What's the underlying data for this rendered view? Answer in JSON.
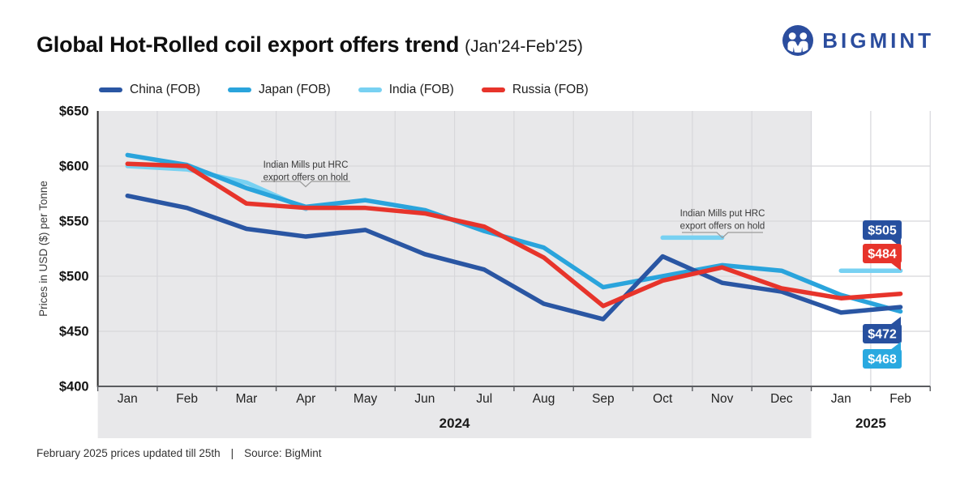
{
  "header": {
    "title": "Global Hot-Rolled coil export offers trend",
    "subtitle": "(Jan'24-Feb'25)",
    "brand": "BIGMINT"
  },
  "legend": {
    "items": [
      {
        "label": "China (FOB)",
        "color": "#2a56a3"
      },
      {
        "label": "Japan (FOB)",
        "color": "#2aa4dc"
      },
      {
        "label": "India (FOB)",
        "color": "#78d1f2"
      },
      {
        "label": "Russia (FOB)",
        "color": "#e7342b"
      }
    ]
  },
  "footer": {
    "note": "February 2025 prices updated till 25th",
    "separator": "|",
    "source": "Source: BigMint"
  },
  "colors": {
    "brand": "#2b4d9e",
    "plot_bg": "#e8e8ea",
    "grid": "#d7d7db",
    "axis": "#5a5c60",
    "y_axis_line": "#2b2b2b"
  },
  "chart_data": {
    "type": "line",
    "title": "Global Hot-Rolled coil export offers trend",
    "subtitle": "(Jan'24-Feb'25)",
    "ylabel": "Prices in USD ($) per Tonne",
    "ylim": [
      400,
      650
    ],
    "ytick_interval": 50,
    "ytick_prefix": "$",
    "grid": true,
    "legend_position": "top",
    "categories": [
      "Jan",
      "Feb",
      "Mar",
      "Apr",
      "May",
      "Jun",
      "Jul",
      "Aug",
      "Sep",
      "Oct",
      "Nov",
      "Dec",
      "Jan",
      "Feb"
    ],
    "year_groups": [
      {
        "label": "2024",
        "start": 0,
        "end": 11
      },
      {
        "label": "2025",
        "start": 12,
        "end": 13
      }
    ],
    "series": [
      {
        "name": "India (FOB)",
        "color": "#78d1f2",
        "values": [
          600,
          597,
          585,
          561,
          null,
          null,
          null,
          null,
          null,
          535,
          535,
          null,
          505,
          505
        ]
      },
      {
        "name": "Japan (FOB)",
        "color": "#2aa4dc",
        "values": [
          610,
          601,
          580,
          563,
          569,
          560,
          541,
          526,
          490,
          500,
          510,
          505,
          483,
          468
        ]
      },
      {
        "name": "China (FOB)",
        "color": "#2a56a3",
        "values": [
          573,
          562,
          543,
          536,
          542,
          520,
          506,
          475,
          461,
          518,
          494,
          486,
          467,
          472
        ]
      },
      {
        "name": "Russia (FOB)",
        "color": "#e7342b",
        "values": [
          602,
          600,
          566,
          562,
          562,
          557,
          545,
          517,
          473,
          496,
          508,
          489,
          480,
          484
        ]
      }
    ],
    "annotations": [
      {
        "text_lines": [
          "Indian Mills put HRC",
          "export offers on hold"
        ],
        "series": "India (FOB)",
        "x_index": 3
      },
      {
        "text_lines": [
          "Indian Mills put HRC",
          "export offers on hold"
        ],
        "series": "India (FOB)",
        "x_index": 10
      }
    ],
    "end_labels": [
      {
        "label": "$505",
        "value": 505,
        "series": "India (FOB)",
        "box_color": "#27509f",
        "tail": "down"
      },
      {
        "label": "$484",
        "value": 484,
        "series": "Russia (FOB)",
        "box_color": "#e7342b",
        "tail": "down"
      },
      {
        "label": "$472",
        "value": 472,
        "series": "China (FOB)",
        "box_color": "#27509f",
        "tail": "up"
      },
      {
        "label": "$468",
        "value": 468,
        "series": "Japan (FOB)",
        "box_color": "#29a9e0",
        "tail": "up"
      }
    ]
  }
}
